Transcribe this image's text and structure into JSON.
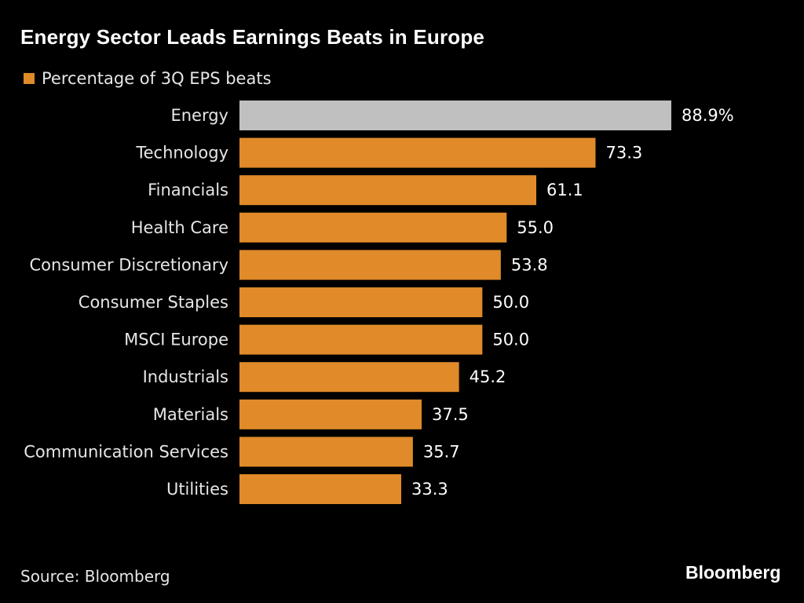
{
  "chart_data": {
    "type": "bar",
    "orientation": "horizontal",
    "title": "Energy Sector Leads Earnings Beats in Europe",
    "legend": [
      {
        "name": "Percentage of 3Q EPS beats",
        "color": "#e08a2a"
      }
    ],
    "legend_placement": "top-left",
    "categories": [
      "Energy",
      "Technology",
      "Financials",
      "Health Care",
      "Consumer Discretionary",
      "Consumer Staples",
      "MSCI Europe",
      "Industrials",
      "Materials",
      "Communication Services",
      "Utilities"
    ],
    "values": [
      88.9,
      73.3,
      61.1,
      55.0,
      53.8,
      50.0,
      50.0,
      45.2,
      37.5,
      35.7,
      33.3
    ],
    "value_labels": [
      "88.9%",
      "73.3",
      "61.1",
      "55.0",
      "53.8",
      "50.0",
      "50.0",
      "45.2",
      "37.5",
      "35.7",
      "33.3"
    ],
    "highlight_category": "Energy",
    "highlight_color": "#c0c0c0",
    "bar_color": "#e08a2a",
    "xlim": [
      0,
      88.9
    ],
    "grid": false,
    "source": "Source: Bloomberg",
    "brand": "Bloomberg"
  }
}
